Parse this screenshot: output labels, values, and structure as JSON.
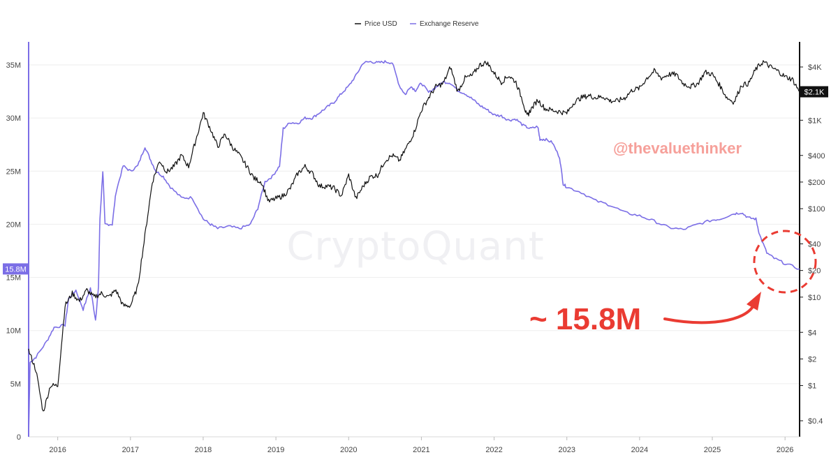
{
  "chart_data": {
    "type": "line",
    "legend": [
      {
        "name": "Price USD",
        "color": "#111111"
      },
      {
        "name": "Exchange Reserve",
        "color": "#7b6ee6"
      }
    ],
    "x_ticks": [
      "2016",
      "2017",
      "2018",
      "2019",
      "2020",
      "2021",
      "2022",
      "2023",
      "2024",
      "2025",
      "2026"
    ],
    "x_range": [
      2015.6,
      2026.2
    ],
    "left_axis": {
      "ticks": [
        "0",
        "5M",
        "10M",
        "15M",
        "20M",
        "25M",
        "30M",
        "35M"
      ],
      "tick_values": [
        0,
        5,
        10,
        15,
        20,
        25,
        30,
        35
      ],
      "range": [
        0,
        35
      ],
      "current_label": "15.8M",
      "current_value": 15.8
    },
    "right_axis": {
      "scale": "log",
      "ticks": [
        "$4K",
        "$1K",
        "$400",
        "$200",
        "$100",
        "$40",
        "$20",
        "$10",
        "$4",
        "$2",
        "$1",
        "$0.4"
      ],
      "tick_values": [
        4000,
        1000,
        400,
        200,
        100,
        40,
        20,
        10,
        4,
        2,
        1,
        0.4
      ],
      "current_label": "$2.1K",
      "current_value": 2100
    },
    "series": [
      {
        "name": "Exchange Reserve",
        "axis": "left",
        "unit": "M",
        "points": [
          [
            2015.6,
            0
          ],
          [
            2015.62,
            7
          ],
          [
            2015.7,
            7.5
          ],
          [
            2015.85,
            9
          ],
          [
            2015.95,
            10.3
          ],
          [
            2016.1,
            10.5
          ],
          [
            2016.15,
            13
          ],
          [
            2016.25,
            13.8
          ],
          [
            2016.35,
            12
          ],
          [
            2016.45,
            14
          ],
          [
            2016.52,
            11
          ],
          [
            2016.56,
            14
          ],
          [
            2016.58,
            20.5
          ],
          [
            2016.62,
            25
          ],
          [
            2016.65,
            20
          ],
          [
            2016.75,
            20
          ],
          [
            2016.8,
            23
          ],
          [
            2016.9,
            25.5
          ],
          [
            2017.0,
            25
          ],
          [
            2017.1,
            25.5
          ],
          [
            2017.2,
            27.3
          ],
          [
            2017.28,
            26
          ],
          [
            2017.35,
            25
          ],
          [
            2017.45,
            24.5
          ],
          [
            2017.55,
            23.5
          ],
          [
            2017.7,
            22.5
          ],
          [
            2017.85,
            22.5
          ],
          [
            2018.0,
            20.5
          ],
          [
            2018.1,
            20
          ],
          [
            2018.2,
            19.6
          ],
          [
            2018.35,
            19.8
          ],
          [
            2018.5,
            19.6
          ],
          [
            2018.65,
            20
          ],
          [
            2018.75,
            21.5
          ],
          [
            2018.85,
            24
          ],
          [
            2018.95,
            24.5
          ],
          [
            2019.05,
            25.5
          ],
          [
            2019.1,
            29
          ],
          [
            2019.2,
            29.6
          ],
          [
            2019.3,
            29.5
          ],
          [
            2019.4,
            30
          ],
          [
            2019.5,
            30
          ],
          [
            2019.6,
            30.5
          ],
          [
            2019.7,
            31
          ],
          [
            2019.8,
            31.5
          ],
          [
            2019.9,
            32.3
          ],
          [
            2020.0,
            33
          ],
          [
            2020.1,
            34
          ],
          [
            2020.2,
            35.2
          ],
          [
            2020.3,
            35.3
          ],
          [
            2020.4,
            35.2
          ],
          [
            2020.5,
            35.3
          ],
          [
            2020.6,
            35.2
          ],
          [
            2020.7,
            33
          ],
          [
            2020.78,
            32.2
          ],
          [
            2020.85,
            33
          ],
          [
            2020.92,
            32.6
          ],
          [
            2021.0,
            33.3
          ],
          [
            2021.1,
            32.4
          ],
          [
            2021.2,
            32.9
          ],
          [
            2021.3,
            33.4
          ],
          [
            2021.4,
            33.3
          ],
          [
            2021.5,
            32.6
          ],
          [
            2021.6,
            32.3
          ],
          [
            2021.7,
            31.8
          ],
          [
            2021.8,
            31.2
          ],
          [
            2021.9,
            30.8
          ],
          [
            2022.0,
            30.3
          ],
          [
            2022.1,
            30.2
          ],
          [
            2022.2,
            29.8
          ],
          [
            2022.3,
            29.9
          ],
          [
            2022.4,
            29.3
          ],
          [
            2022.5,
            29
          ],
          [
            2022.6,
            29.2
          ],
          [
            2022.63,
            28
          ],
          [
            2022.7,
            28
          ],
          [
            2022.8,
            27.7
          ],
          [
            2022.9,
            26.3
          ],
          [
            2022.95,
            23.8
          ],
          [
            2023.0,
            23.5
          ],
          [
            2023.2,
            23
          ],
          [
            2023.4,
            22.2
          ],
          [
            2023.6,
            21.8
          ],
          [
            2023.8,
            21.1
          ],
          [
            2024.0,
            20.8
          ],
          [
            2024.2,
            20.3
          ],
          [
            2024.4,
            19.7
          ],
          [
            2024.6,
            19.5
          ],
          [
            2024.8,
            20
          ],
          [
            2025.0,
            20.4
          ],
          [
            2025.1,
            20.5
          ],
          [
            2025.3,
            21
          ],
          [
            2025.4,
            21.1
          ],
          [
            2025.5,
            20.6
          ],
          [
            2025.6,
            20.5
          ],
          [
            2025.65,
            19
          ],
          [
            2025.75,
            17.3
          ],
          [
            2025.85,
            16.8
          ],
          [
            2026.0,
            16.3
          ],
          [
            2026.2,
            15.8
          ]
        ]
      },
      {
        "name": "Price USD",
        "axis": "right",
        "unit": "USD",
        "points": [
          [
            2015.6,
            2.5
          ],
          [
            2015.7,
            1.5
          ],
          [
            2015.8,
            0.5
          ],
          [
            2015.9,
            1
          ],
          [
            2016.0,
            1
          ],
          [
            2016.1,
            8
          ],
          [
            2016.2,
            11
          ],
          [
            2016.3,
            9
          ],
          [
            2016.4,
            12
          ],
          [
            2016.5,
            10
          ],
          [
            2016.6,
            11
          ],
          [
            2016.7,
            10
          ],
          [
            2016.8,
            12
          ],
          [
            2016.9,
            8
          ],
          [
            2017.0,
            8
          ],
          [
            2017.1,
            13
          ],
          [
            2017.2,
            50
          ],
          [
            2017.3,
            200
          ],
          [
            2017.4,
            350
          ],
          [
            2017.5,
            260
          ],
          [
            2017.6,
            300
          ],
          [
            2017.7,
            400
          ],
          [
            2017.8,
            300
          ],
          [
            2017.9,
            600
          ],
          [
            2018.0,
            1200
          ],
          [
            2018.1,
            800
          ],
          [
            2018.2,
            500
          ],
          [
            2018.3,
            700
          ],
          [
            2018.4,
            500
          ],
          [
            2018.5,
            400
          ],
          [
            2018.6,
            300
          ],
          [
            2018.7,
            220
          ],
          [
            2018.8,
            200
          ],
          [
            2018.9,
            120
          ],
          [
            2019.0,
            130
          ],
          [
            2019.1,
            140
          ],
          [
            2019.2,
            170
          ],
          [
            2019.3,
            250
          ],
          [
            2019.4,
            300
          ],
          [
            2019.5,
            250
          ],
          [
            2019.6,
            180
          ],
          [
            2019.7,
            180
          ],
          [
            2019.8,
            170
          ],
          [
            2019.9,
            140
          ],
          [
            2020.0,
            240
          ],
          [
            2020.1,
            130
          ],
          [
            2020.2,
            180
          ],
          [
            2020.3,
            230
          ],
          [
            2020.4,
            240
          ],
          [
            2020.5,
            350
          ],
          [
            2020.6,
            400
          ],
          [
            2020.7,
            350
          ],
          [
            2020.8,
            500
          ],
          [
            2020.9,
            730
          ],
          [
            2021.0,
            1300
          ],
          [
            2021.1,
            1800
          ],
          [
            2021.2,
            2400
          ],
          [
            2021.3,
            2600
          ],
          [
            2021.4,
            4000
          ],
          [
            2021.5,
            2100
          ],
          [
            2021.6,
            3000
          ],
          [
            2021.7,
            3200
          ],
          [
            2021.8,
            4200
          ],
          [
            2021.9,
            4500
          ],
          [
            2022.0,
            3400
          ],
          [
            2022.1,
            2700
          ],
          [
            2022.2,
            3200
          ],
          [
            2022.3,
            2700
          ],
          [
            2022.4,
            1600
          ],
          [
            2022.45,
            1100
          ],
          [
            2022.5,
            1300
          ],
          [
            2022.6,
            1700
          ],
          [
            2022.7,
            1350
          ],
          [
            2022.8,
            1300
          ],
          [
            2022.9,
            1250
          ],
          [
            2023.0,
            1200
          ],
          [
            2023.1,
            1600
          ],
          [
            2023.2,
            1800
          ],
          [
            2023.3,
            1900
          ],
          [
            2023.4,
            1800
          ],
          [
            2023.5,
            1850
          ],
          [
            2023.6,
            1650
          ],
          [
            2023.7,
            1650
          ],
          [
            2023.8,
            1800
          ],
          [
            2023.9,
            2200
          ],
          [
            2024.0,
            2300
          ],
          [
            2024.1,
            3000
          ],
          [
            2024.2,
            3600
          ],
          [
            2024.3,
            3000
          ],
          [
            2024.4,
            3300
          ],
          [
            2024.5,
            3300
          ],
          [
            2024.6,
            2600
          ],
          [
            2024.7,
            2400
          ],
          [
            2024.8,
            2600
          ],
          [
            2024.9,
            3500
          ],
          [
            2025.0,
            3300
          ],
          [
            2025.1,
            2500
          ],
          [
            2025.2,
            1800
          ],
          [
            2025.3,
            1600
          ],
          [
            2025.4,
            2500
          ],
          [
            2025.5,
            2600
          ],
          [
            2025.6,
            3800
          ],
          [
            2025.7,
            4600
          ],
          [
            2025.8,
            4000
          ],
          [
            2025.9,
            3600
          ],
          [
            2026.0,
            3100
          ],
          [
            2026.1,
            2900
          ],
          [
            2026.2,
            2100
          ]
        ]
      }
    ]
  },
  "watermark": "CryptoQuant",
  "handle": "@thevaluethinker",
  "annotation": "~ 15.8M",
  "colors": {
    "price": "#111111",
    "reserve": "#7b6ee6",
    "annotation": "#ea3b32",
    "handle": "#f6a09a"
  }
}
